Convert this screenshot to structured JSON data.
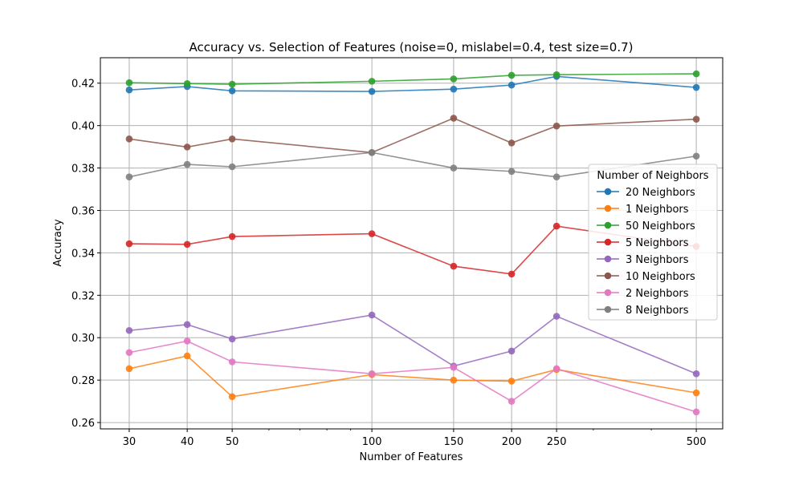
{
  "chart_data": {
    "type": "line",
    "title": "Accuracy vs. Selection of Features (noise=0, mislabel=0.4, test size=0.7)",
    "xlabel": "Number of Features",
    "ylabel": "Accuracy",
    "x_scale": "log",
    "x": [
      30,
      40,
      50,
      100,
      150,
      200,
      250,
      500
    ],
    "x_tick_labels": [
      "30",
      "40",
      "50",
      "100",
      "150",
      "200",
      "250",
      "500"
    ],
    "xlim": [
      26,
      570
    ],
    "ylim": [
      0.257,
      0.432
    ],
    "y_ticks": [
      0.26,
      0.28,
      0.3,
      0.32,
      0.34,
      0.36,
      0.38,
      0.4,
      0.42
    ],
    "y_tick_labels": [
      "0.26",
      "0.28",
      "0.30",
      "0.32",
      "0.34",
      "0.36",
      "0.38",
      "0.40",
      "0.42"
    ],
    "grid": true,
    "legend": {
      "title": "Number of Neighbors",
      "placement": "center-right"
    },
    "series": [
      {
        "name": "20 Neighbors",
        "color": "#1f77b4",
        "values": [
          0.4168,
          0.4184,
          0.4164,
          0.4161,
          0.4172,
          0.4191,
          0.4232,
          0.418
        ]
      },
      {
        "name": "1 Neighbors",
        "color": "#ff7f0e",
        "values": [
          0.2854,
          0.2914,
          0.2722,
          0.2826,
          0.28,
          0.2795,
          0.285,
          0.274
        ]
      },
      {
        "name": "50 Neighbors",
        "color": "#2ca02c",
        "values": [
          0.4202,
          0.4198,
          0.4195,
          0.4209,
          0.422,
          0.4237,
          0.424,
          0.4244
        ]
      },
      {
        "name": "5 Neighbors",
        "color": "#d62728",
        "values": [
          0.3443,
          0.344,
          0.3477,
          0.349,
          0.3337,
          0.33,
          0.3526,
          0.343
        ]
      },
      {
        "name": "3 Neighbors",
        "color": "#9467bd",
        "values": [
          0.3034,
          0.3062,
          0.2994,
          0.3107,
          0.2866,
          0.2937,
          0.3101,
          0.283
        ]
      },
      {
        "name": "10 Neighbors",
        "color": "#8c564b",
        "values": [
          0.3937,
          0.3899,
          0.3937,
          0.3873,
          0.4035,
          0.3918,
          0.3998,
          0.403
        ]
      },
      {
        "name": "2 Neighbors",
        "color": "#e377c2",
        "values": [
          0.293,
          0.2984,
          0.2886,
          0.283,
          0.286,
          0.27,
          0.2854,
          0.265
        ]
      },
      {
        "name": "8 Neighbors",
        "color": "#7f7f7f",
        "values": [
          0.3758,
          0.3817,
          0.3806,
          0.3873,
          0.38,
          0.3784,
          0.3758,
          0.3856
        ]
      }
    ]
  }
}
